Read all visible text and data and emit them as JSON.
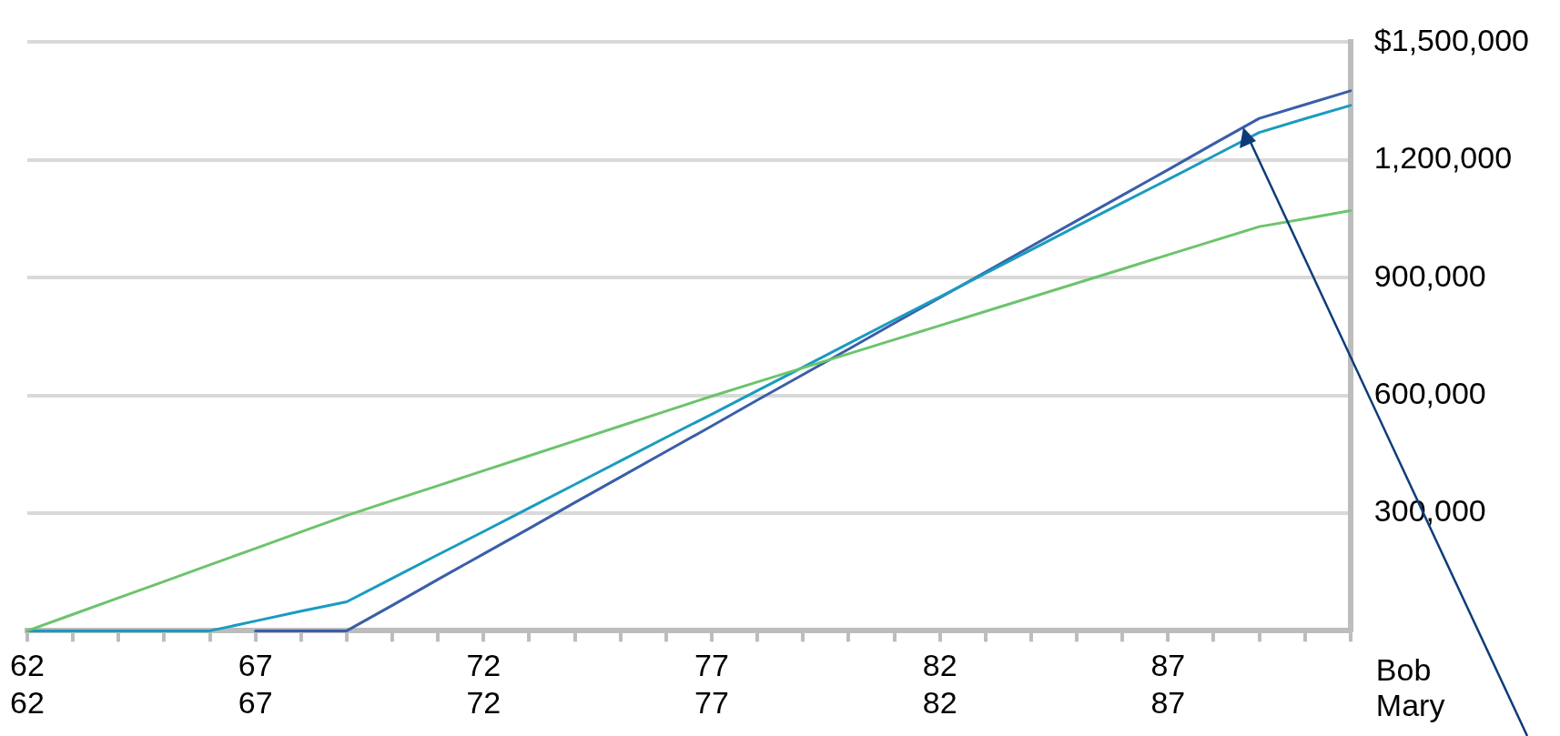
{
  "chart_data": {
    "type": "line",
    "categories": [
      "62\n62",
      null,
      null,
      null,
      null,
      "67\n67",
      null,
      null,
      null,
      null,
      "72\n72",
      null,
      null,
      null,
      null,
      "77\n77",
      null,
      null,
      null,
      null,
      "82\n82",
      null,
      null,
      null,
      null,
      "87\n87",
      null,
      null,
      null,
      null
    ],
    "series": [
      {
        "color": "#6cc46c",
        "values": [
          0,
          42000,
          84000,
          126000,
          168000,
          210000,
          252000,
          294000,
          332000,
          370000,
          408000,
          446000,
          484000,
          522000,
          560000,
          598000,
          634000,
          670000,
          706000,
          742000,
          778000,
          814000,
          850000,
          886000,
          922000,
          958000,
          994000,
          1030000,
          1050000,
          1071000
        ]
      },
      {
        "color": "#1a9bc0",
        "values": [
          0,
          0,
          0,
          0,
          0,
          25000,
          50000,
          74000,
          134000,
          194000,
          253000,
          313000,
          373000,
          433000,
          493000,
          552000,
          612000,
          672000,
          732000,
          792000,
          851000,
          911000,
          971000,
          1031000,
          1091000,
          1150000,
          1210000,
          1270000,
          1305000,
          1339000
        ]
      },
      {
        "color": "#3a5ea8",
        "values": [
          null,
          null,
          null,
          null,
          null,
          0,
          0,
          0,
          65000,
          131000,
          196000,
          261000,
          327000,
          392000,
          457000,
          522000,
          588000,
          653000,
          718000,
          784000,
          849000,
          914000,
          980000,
          1045000,
          1110000,
          1175000,
          1241000,
          1306000,
          1341000,
          1376000
        ]
      }
    ],
    "ylim": [
      0,
      1500000
    ],
    "yticks": [
      {
        "value": 0,
        "label": null
      },
      {
        "value": 300000,
        "label": "300,000"
      },
      {
        "value": 600000,
        "label": "600,000"
      },
      {
        "value": 900000,
        "label": "900,000"
      },
      {
        "value": 1200000,
        "label": "1,200,000"
      },
      {
        "value": 1500000,
        "label": "$1,500,000"
      }
    ],
    "grid": "y",
    "legend": false,
    "marker": "none",
    "line_style": "solid",
    "annotations": [
      "Bob",
      "Mary"
    ]
  }
}
